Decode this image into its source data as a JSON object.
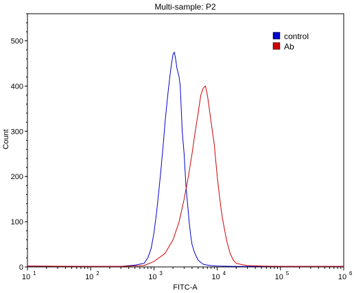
{
  "chart_data": {
    "type": "line",
    "title": "Multi-sample: P2",
    "xlabel": "FITC-A",
    "ylabel": "Count",
    "x_scale": "log",
    "xlim": [
      10,
      1000000
    ],
    "ylim": [
      0,
      560
    ],
    "grid": false,
    "legend_position": "top-right",
    "x_ticks": [
      {
        "base": "10",
        "exp": "1"
      },
      {
        "base": "10",
        "exp": "2"
      },
      {
        "base": "10",
        "exp": "3"
      },
      {
        "base": "10",
        "exp": "4"
      },
      {
        "base": "10",
        "exp": "5"
      },
      {
        "base": "10",
        "exp": "6"
      }
    ],
    "y_ticks": [
      0,
      100,
      200,
      300,
      400,
      500
    ],
    "series": [
      {
        "name": "control",
        "color": "#0000cc",
        "x": [
          10,
          100,
          300,
          500,
          700,
          800,
          900,
          1000,
          1100,
          1200,
          1300,
          1400,
          1500,
          1600,
          1700,
          1800,
          1900,
          2000,
          2100,
          2200,
          2300,
          2400,
          2500,
          2600,
          2700,
          2800,
          3000,
          3200,
          3400,
          3600,
          3800,
          4000,
          4300,
          4600,
          5000,
          5500,
          6000,
          7000,
          8000,
          10000,
          20000,
          100000,
          1000000
        ],
        "y": [
          2,
          1,
          1,
          4,
          8,
          20,
          40,
          75,
          120,
          170,
          220,
          270,
          320,
          360,
          395,
          425,
          450,
          470,
          475,
          460,
          440,
          430,
          420,
          400,
          350,
          300,
          250,
          180,
          140,
          100,
          70,
          50,
          35,
          25,
          15,
          10,
          6,
          4,
          3,
          2,
          1,
          1,
          1
        ]
      },
      {
        "name": "Ab",
        "color": "#cc0000",
        "x": [
          10,
          100,
          300,
          700,
          1000,
          1500,
          2000,
          2500,
          3000,
          3500,
          4000,
          4500,
          5000,
          5500,
          6000,
          6500,
          7000,
          7500,
          8000,
          9000,
          10000,
          11000,
          12000,
          14000,
          16000,
          18000,
          20000,
          25000,
          30000,
          50000,
          100000,
          1000000
        ],
        "y": [
          2,
          1,
          1,
          3,
          12,
          30,
          60,
          100,
          150,
          200,
          250,
          300,
          340,
          380,
          395,
          400,
          380,
          350,
          320,
          270,
          200,
          150,
          110,
          60,
          30,
          15,
          8,
          5,
          3,
          2,
          1,
          1
        ]
      }
    ]
  }
}
